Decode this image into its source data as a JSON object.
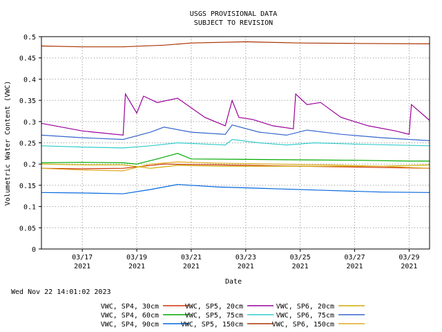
{
  "chart_data": {
    "type": "line",
    "title": "USGS PROVISIONAL DATA",
    "subtitle": "SUBJECT TO REVISION",
    "xlabel": "Date",
    "ylabel": "Volumetric Water Content (VWC)",
    "ylim": [
      0,
      0.5
    ],
    "yticks": [
      "0",
      "0.05",
      "0.1",
      "0.15",
      "0.2",
      "0.25",
      "0.3",
      "0.35",
      "0.4",
      "0.45",
      "0.5"
    ],
    "xlim": [
      "2021-03-15 12:00",
      "2021-03-29 18:00"
    ],
    "xticks": [
      {
        "date": "03/17",
        "year": "2021"
      },
      {
        "date": "03/19",
        "year": "2021"
      },
      {
        "date": "03/21",
        "year": "2021"
      },
      {
        "date": "03/23",
        "year": "2021"
      },
      {
        "date": "03/25",
        "year": "2021"
      },
      {
        "date": "03/27",
        "year": "2021"
      },
      {
        "date": "03/29",
        "year": "2021"
      }
    ],
    "grid": true,
    "legend_position": "bottom",
    "footer_timestamp": "Wed Nov 22 14:01:02 2023",
    "series": [
      {
        "name": "VWC, SP4, 30cm",
        "color": "#cc3300",
        "x": [
          "2021-03-15 12:00",
          "2021-03-17 00:00",
          "2021-03-18 12:00",
          "2021-03-20 00:00",
          "2021-03-22 00:00",
          "2021-03-24 00:00",
          "2021-03-26 00:00",
          "2021-03-28 00:00",
          "2021-03-29 18:00"
        ],
        "y": [
          0.19,
          0.189,
          0.19,
          0.2,
          0.198,
          0.196,
          0.194,
          0.192,
          0.19
        ]
      },
      {
        "name": "VWC, SP5, 20cm",
        "color": "#990099",
        "x": [
          "2021-03-15 12:00",
          "2021-03-17 00:00",
          "2021-03-18 12:00",
          "2021-03-18 14:00",
          "2021-03-19 00:00",
          "2021-03-19 06:00",
          "2021-03-19 18:00",
          "2021-03-20 12:00",
          "2021-03-21 12:00",
          "2021-03-22 06:00",
          "2021-03-22 12:00",
          "2021-03-22 18:00",
          "2021-03-23 06:00",
          "2021-03-24 00:00",
          "2021-03-24 18:00",
          "2021-03-24 20:00",
          "2021-03-25 06:00",
          "2021-03-25 18:00",
          "2021-03-26 12:00",
          "2021-03-27 12:00",
          "2021-03-28 12:00",
          "2021-03-29 00:00",
          "2021-03-29 02:00",
          "2021-03-29 18:00"
        ],
        "y": [
          0.296,
          0.278,
          0.268,
          0.365,
          0.32,
          0.36,
          0.345,
          0.355,
          0.31,
          0.29,
          0.35,
          0.31,
          0.305,
          0.29,
          0.283,
          0.365,
          0.34,
          0.345,
          0.31,
          0.29,
          0.278,
          0.27,
          0.34,
          0.303
        ]
      },
      {
        "name": "VWC, SP6, 20cm",
        "color": "#ccaa00",
        "x": [
          "2021-03-15 12:00",
          "2021-03-17 00:00",
          "2021-03-18 12:00",
          "2021-03-19 12:00",
          "2021-03-20 12:00",
          "2021-03-22 00:00",
          "2021-03-24 00:00",
          "2021-03-26 00:00",
          "2021-03-28 00:00",
          "2021-03-29 18:00"
        ],
        "y": [
          0.2,
          0.198,
          0.198,
          0.19,
          0.197,
          0.195,
          0.195,
          0.195,
          0.195,
          0.198
        ]
      },
      {
        "name": "VWC, SP4, 60cm",
        "color": "#00aa00",
        "x": [
          "2021-03-15 12:00",
          "2021-03-17 00:00",
          "2021-03-18 12:00",
          "2021-03-19 00:00",
          "2021-03-19 18:00",
          "2021-03-20 12:00",
          "2021-03-21 00:00",
          "2021-03-23 00:00",
          "2021-03-25 00:00",
          "2021-03-27 00:00",
          "2021-03-29 00:00",
          "2021-03-29 18:00"
        ],
        "y": [
          0.203,
          0.204,
          0.203,
          0.2,
          0.212,
          0.225,
          0.212,
          0.211,
          0.21,
          0.209,
          0.207,
          0.207
        ]
      },
      {
        "name": "VWC, SP5, 75cm",
        "color": "#33cccc",
        "x": [
          "2021-03-15 12:00",
          "2021-03-17 00:00",
          "2021-03-18 12:00",
          "2021-03-19 12:00",
          "2021-03-20 12:00",
          "2021-03-21 12:00",
          "2021-03-22 06:00",
          "2021-03-22 12:00",
          "2021-03-23 12:00",
          "2021-03-24 12:00",
          "2021-03-25 12:00",
          "2021-03-27 00:00",
          "2021-03-29 18:00"
        ],
        "y": [
          0.243,
          0.24,
          0.238,
          0.243,
          0.25,
          0.247,
          0.245,
          0.258,
          0.25,
          0.245,
          0.25,
          0.247,
          0.243
        ]
      },
      {
        "name": "VWC, SP6, 75cm",
        "color": "#3366cc",
        "x": [
          "2021-03-15 12:00",
          "2021-03-17 00:00",
          "2021-03-18 12:00",
          "2021-03-19 12:00",
          "2021-03-20 00:00",
          "2021-03-21 00:00",
          "2021-03-22 06:00",
          "2021-03-22 12:00",
          "2021-03-23 12:00",
          "2021-03-24 12:00",
          "2021-03-25 06:00",
          "2021-03-26 12:00",
          "2021-03-28 00:00",
          "2021-03-29 18:00"
        ],
        "y": [
          0.268,
          0.262,
          0.258,
          0.275,
          0.287,
          0.275,
          0.27,
          0.292,
          0.275,
          0.268,
          0.28,
          0.27,
          0.262,
          0.255
        ]
      },
      {
        "name": "VWC, SP4, 90cm",
        "color": "#0066dd",
        "x": [
          "2021-03-15 12:00",
          "2021-03-17 00:00",
          "2021-03-18 12:00",
          "2021-03-19 12:00",
          "2021-03-20 12:00",
          "2021-03-22 00:00",
          "2021-03-24 00:00",
          "2021-03-26 00:00",
          "2021-03-28 00:00",
          "2021-03-29 18:00"
        ],
        "y": [
          0.133,
          0.132,
          0.13,
          0.14,
          0.152,
          0.146,
          0.142,
          0.138,
          0.134,
          0.133
        ]
      },
      {
        "name": "VWC, SP5, 150cm",
        "color": "#aa3300",
        "x": [
          "2021-03-15 12:00",
          "2021-03-17 00:00",
          "2021-03-18 12:00",
          "2021-03-20 00:00",
          "2021-03-21 00:00",
          "2021-03-23 00:00",
          "2021-03-25 00:00",
          "2021-03-27 00:00",
          "2021-03-29 18:00"
        ],
        "y": [
          0.478,
          0.476,
          0.476,
          0.48,
          0.485,
          0.488,
          0.485,
          0.484,
          0.483
        ]
      },
      {
        "name": "VWC, SP6, 150cm",
        "color": "#ddaa22",
        "x": [
          "2021-03-15 12:00",
          "2021-03-17 00:00",
          "2021-03-18 12:00",
          "2021-03-19 12:00",
          "2021-03-20 12:00",
          "2021-03-22 00:00",
          "2021-03-24 00:00",
          "2021-03-26 00:00",
          "2021-03-28 00:00",
          "2021-03-29 18:00"
        ],
        "y": [
          0.19,
          0.186,
          0.184,
          0.2,
          0.205,
          0.202,
          0.2,
          0.198,
          0.195,
          0.19
        ]
      }
    ]
  }
}
